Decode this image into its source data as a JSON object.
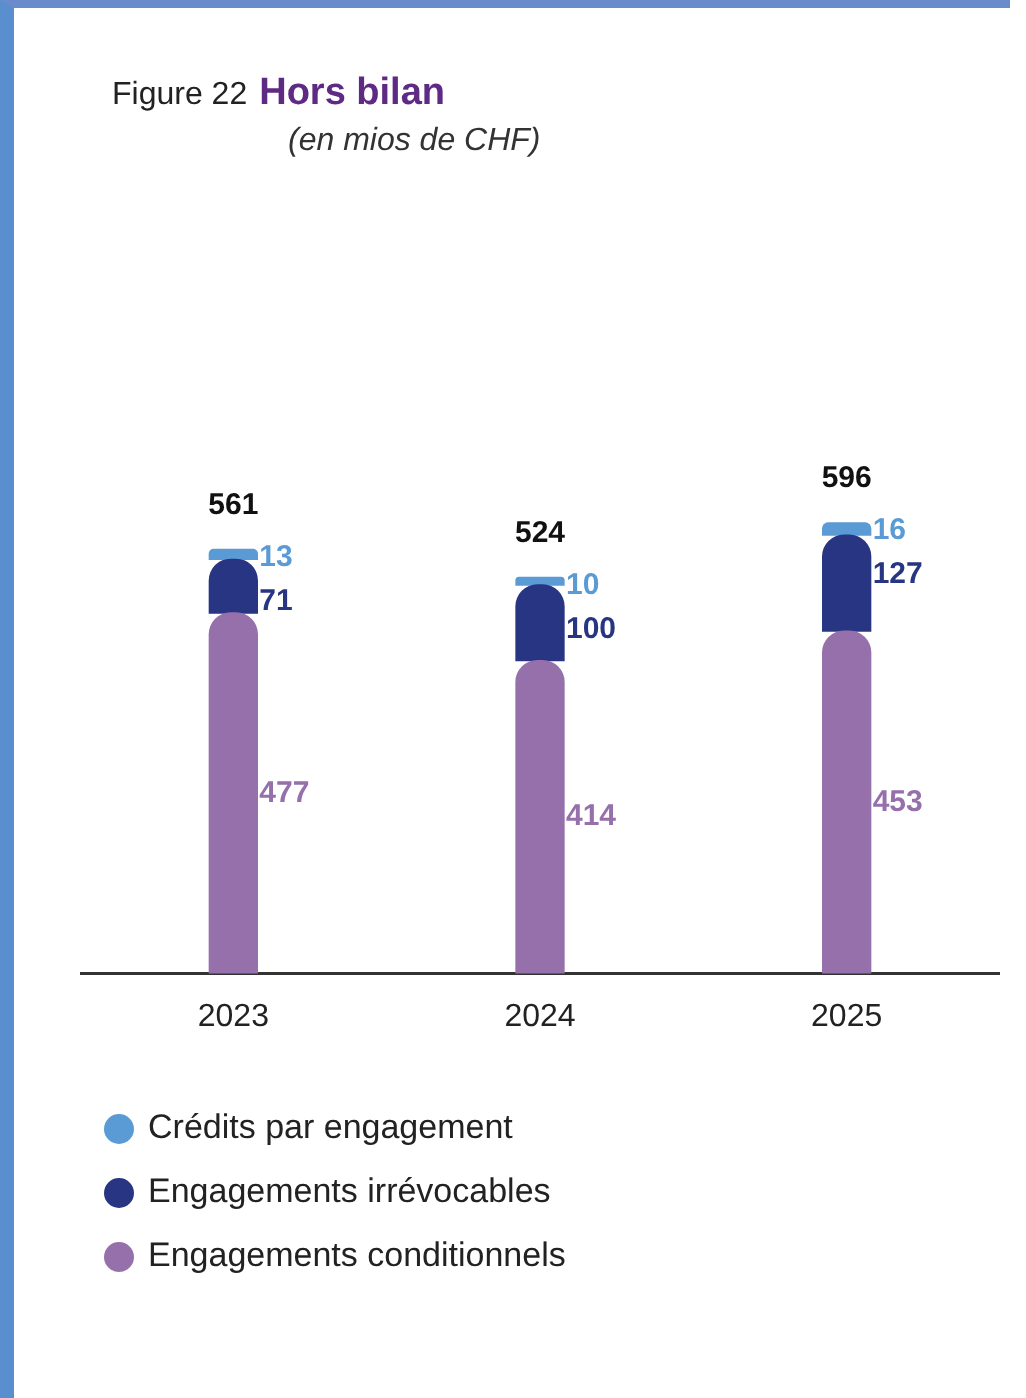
{
  "chart_data": {
    "type": "bar",
    "stacked": true,
    "title": "Hors bilan",
    "subtitle": "(en mios de CHF)",
    "annotations": [
      "Figure 22"
    ],
    "categories": [
      "2023",
      "2024",
      "2025"
    ],
    "series": [
      {
        "name": "Engagements conditionnels",
        "color": "#9670aa",
        "values": [
          477,
          414,
          453
        ]
      },
      {
        "name": "Engagements irrévocables",
        "color": "#283583",
        "values": [
          71,
          100,
          127
        ]
      },
      {
        "name": "Crédits par engagement",
        "color": "#5b9bd5",
        "values": [
          13,
          10,
          16
        ]
      }
    ],
    "data_labels": true,
    "totals": [
      "561",
      "524",
      "596"
    ],
    "legend": "bottom",
    "grid": false
  }
}
